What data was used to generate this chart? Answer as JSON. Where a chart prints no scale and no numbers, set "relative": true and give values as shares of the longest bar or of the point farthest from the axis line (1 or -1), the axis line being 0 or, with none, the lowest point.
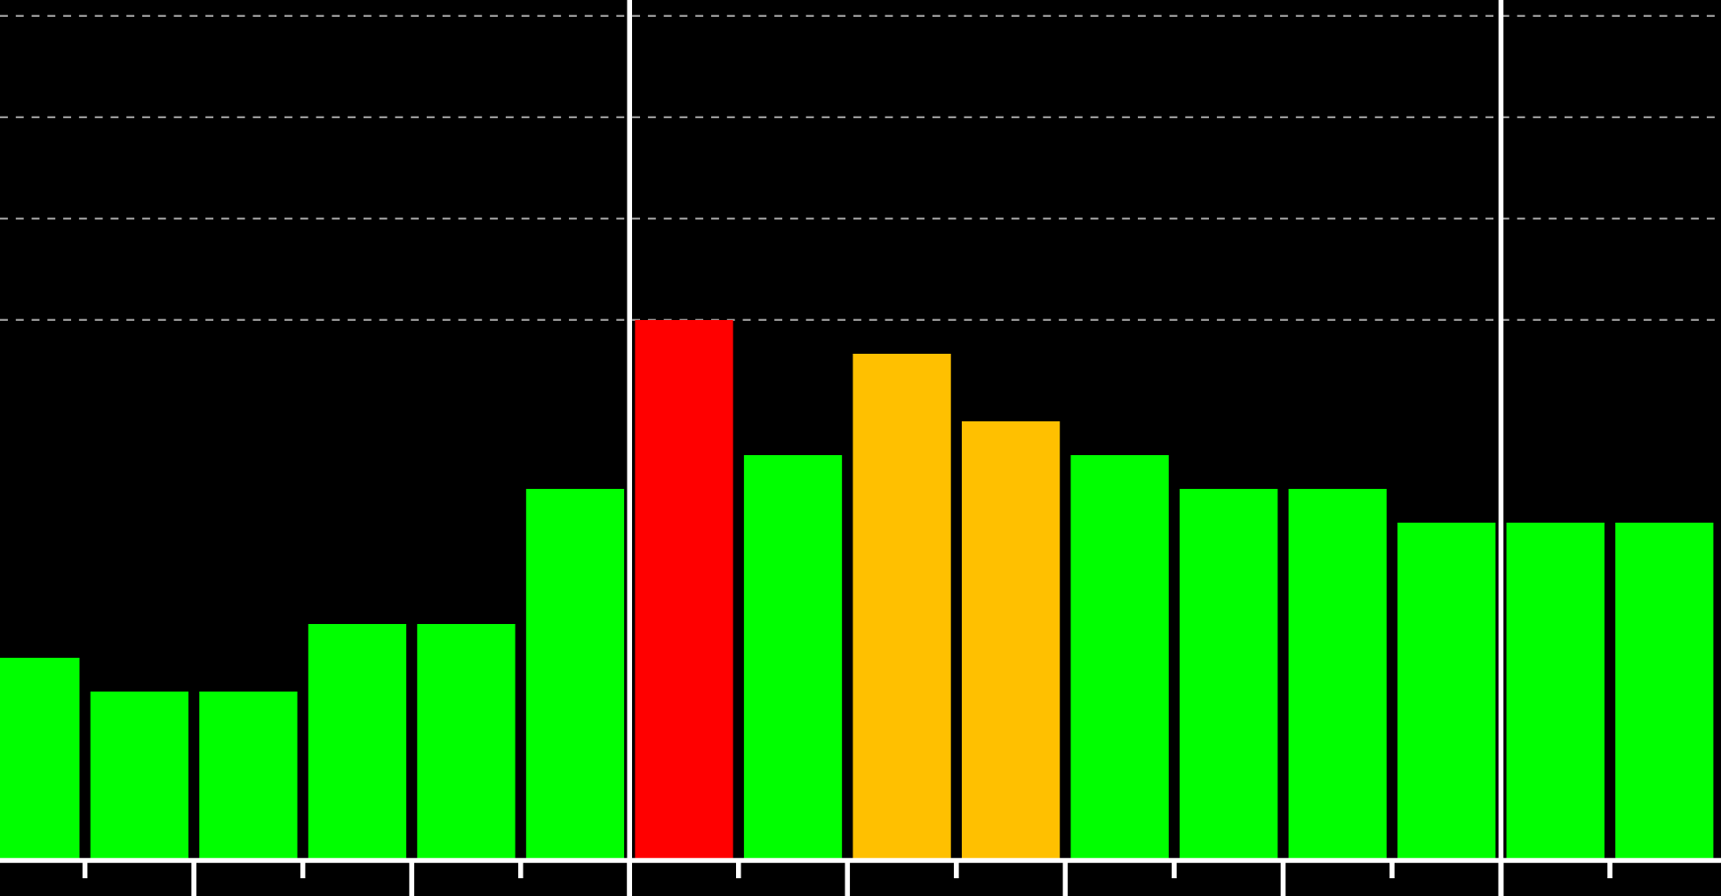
{
  "chart_data": {
    "type": "bar",
    "relative": true,
    "categories": [
      null,
      null,
      null,
      null,
      null,
      null,
      null,
      null,
      null,
      null,
      null,
      null,
      null,
      null,
      null,
      null
    ],
    "values": [
      0.375,
      0.3125,
      0.3125,
      0.4375,
      0.4375,
      0.6875,
      1,
      0.75,
      0.9375,
      0.8125,
      0.75,
      0.6875,
      0.6875,
      0.625,
      0.625,
      0.625
    ],
    "colors": [
      "#00ff00",
      "#00ff00",
      "#00ff00",
      "#00ff00",
      "#00ff00",
      "#00ff00",
      "#ff0000",
      "#00ff00",
      "#ffc000",
      "#ffc000",
      "#00ff00",
      "#00ff00",
      "#00ff00",
      "#00ff00",
      "#00ff00",
      "#00ff00"
    ],
    "grid": "y"
  }
}
